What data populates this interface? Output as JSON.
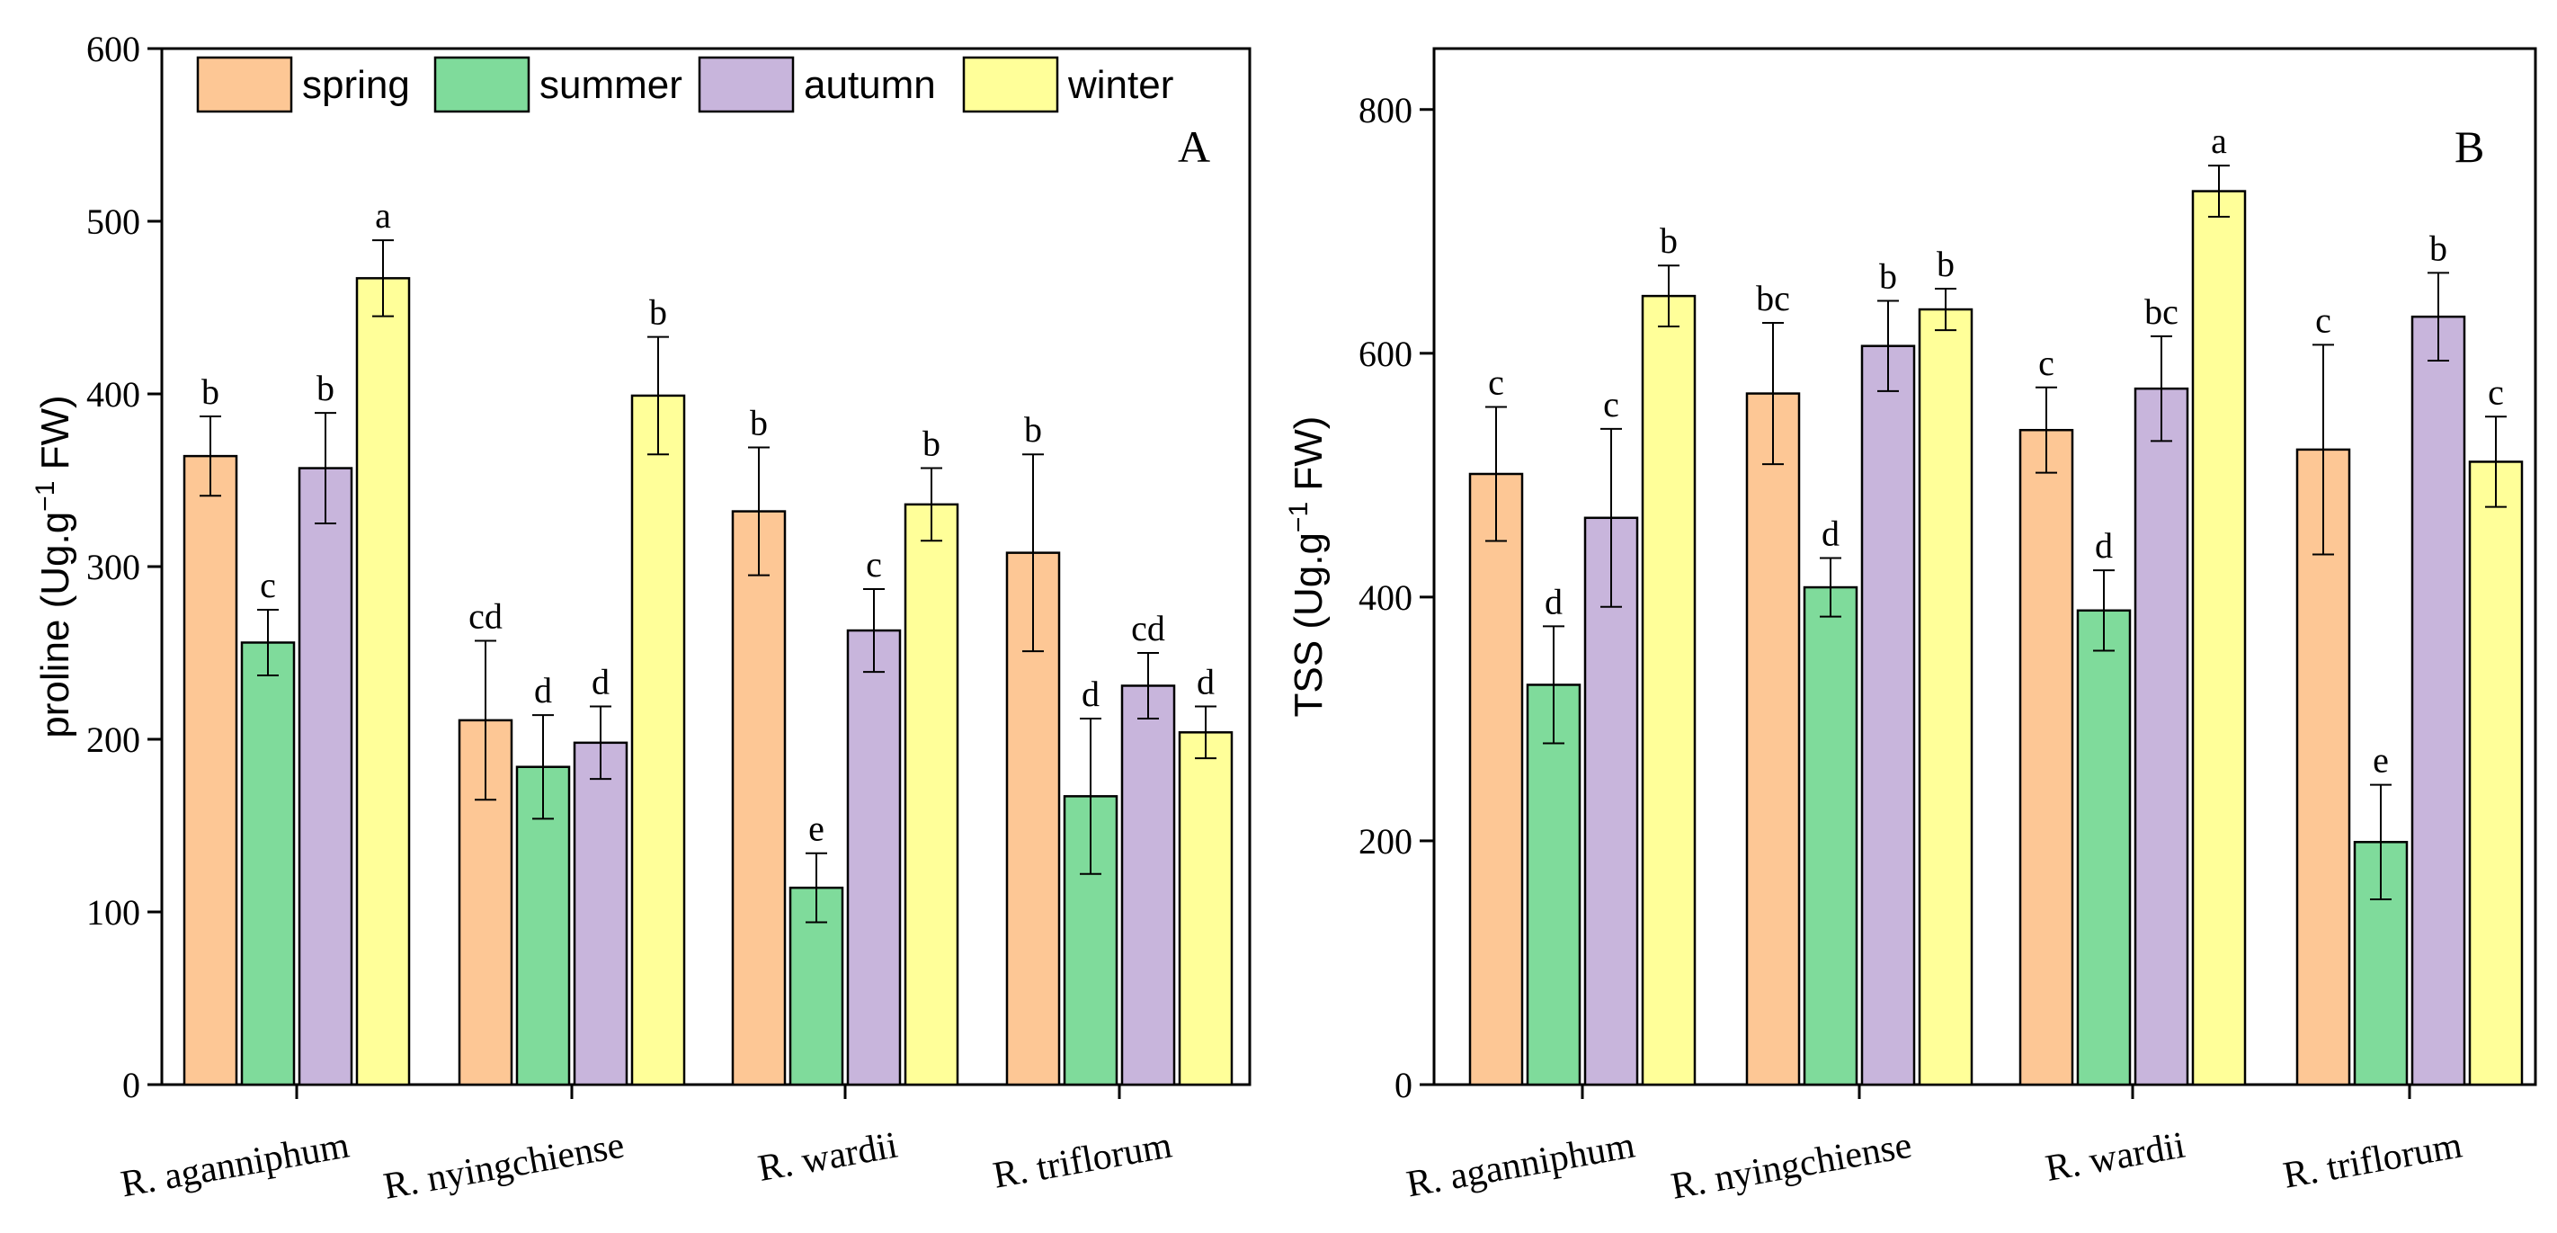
{
  "chart_data": [
    {
      "type": "bar",
      "panel_label": "A",
      "ylabel_main": "proline (Ug.g",
      "ylabel_sup": "−1",
      "ylabel_tail": " FW)",
      "ylim": [
        0,
        600
      ],
      "yticks": [
        0,
        100,
        200,
        300,
        400,
        500,
        600
      ],
      "categories": [
        "R. aganniphum",
        "R. nyingchiense",
        "R. wardii",
        "R. triflorum"
      ],
      "legend": {
        "placement": "top-left",
        "items": [
          "spring",
          "summer",
          "autumn",
          "winter"
        ]
      },
      "series": [
        {
          "name": "spring",
          "color": "#FDC795",
          "values": [
            364,
            211,
            332,
            308
          ],
          "errors": [
            23,
            46,
            37,
            57
          ],
          "letters": [
            "b",
            "cd",
            "b",
            "b"
          ]
        },
        {
          "name": "summer",
          "color": "#7FDB9B",
          "values": [
            256,
            184,
            114,
            167
          ],
          "errors": [
            19,
            30,
            20,
            45
          ],
          "letters": [
            "c",
            "d",
            "e",
            "d"
          ]
        },
        {
          "name": "autumn",
          "color": "#C8B5DC",
          "values": [
            357,
            198,
            263,
            231
          ],
          "errors": [
            32,
            21,
            24,
            19
          ],
          "letters": [
            "b",
            "d",
            "c",
            "cd"
          ]
        },
        {
          "name": "winter",
          "color": "#FFFF99",
          "values": [
            467,
            399,
            336,
            204
          ],
          "errors": [
            22,
            34,
            21,
            15
          ],
          "letters": [
            "a",
            "b",
            "b",
            "d"
          ]
        }
      ]
    },
    {
      "type": "bar",
      "panel_label": "B",
      "ylabel_main": "TSS (Ug.g",
      "ylabel_sup": "−1",
      "ylabel_tail": " FW)",
      "ylim": [
        0,
        850
      ],
      "yticks": [
        0,
        200,
        400,
        600,
        800
      ],
      "categories": [
        "R. aganniphum",
        "R. nyingchiense",
        "R. wardii",
        "R. triflorum"
      ],
      "series": [
        {
          "name": "spring",
          "color": "#FDC795",
          "values": [
            501,
            567,
            537,
            521
          ],
          "errors": [
            55,
            58,
            35,
            86
          ],
          "letters": [
            "c",
            "bc",
            "c",
            "c"
          ]
        },
        {
          "name": "summer",
          "color": "#7FDB9B",
          "values": [
            328,
            408,
            389,
            199
          ],
          "errors": [
            48,
            24,
            33,
            47
          ],
          "letters": [
            "d",
            "d",
            "d",
            "e"
          ]
        },
        {
          "name": "autumn",
          "color": "#C8B5DC",
          "values": [
            465,
            606,
            571,
            630
          ],
          "errors": [
            73,
            37,
            43,
            36
          ],
          "letters": [
            "c",
            "b",
            "bc",
            "b"
          ]
        },
        {
          "name": "winter",
          "color": "#FFFF99",
          "values": [
            647,
            636,
            733,
            511
          ],
          "errors": [
            25,
            17,
            21,
            37
          ],
          "letters": [
            "b",
            "b",
            "a",
            "c"
          ]
        }
      ]
    }
  ]
}
